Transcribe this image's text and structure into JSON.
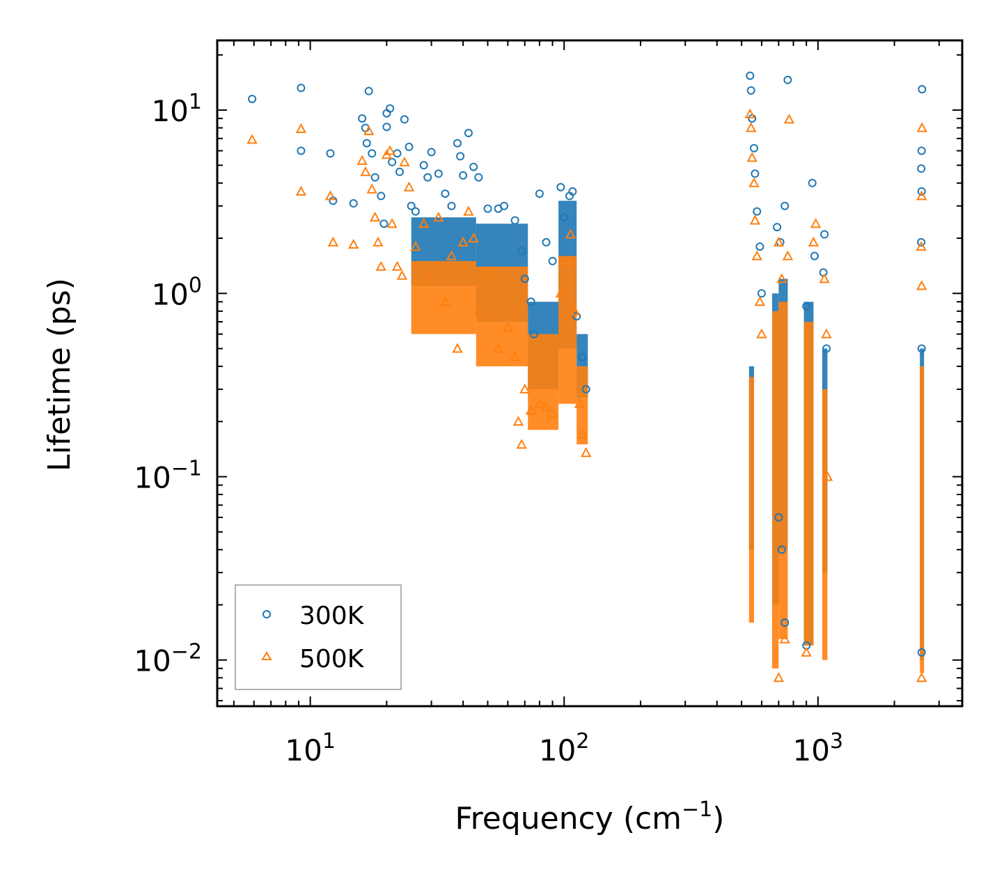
{
  "chart_data": {
    "type": "scatter",
    "xscale": "log",
    "yscale": "log",
    "xlabel": "Frequency (cm",
    "xlabel_sup": "−1",
    "xlabel_suffix": ")",
    "ylabel": "Lifetime (ps)",
    "xlim": [
      4.3,
      3700
    ],
    "ylim": [
      0.0056,
      24
    ],
    "x_ticks": [
      {
        "value": 10,
        "base": "10",
        "exp": "1"
      },
      {
        "value": 100,
        "base": "10",
        "exp": "2"
      },
      {
        "value": 1000,
        "base": "10",
        "exp": "3"
      }
    ],
    "y_ticks": [
      {
        "value": 0.01,
        "base": "10",
        "exp": "−2"
      },
      {
        "value": 0.1,
        "base": "10",
        "exp": "−1"
      },
      {
        "value": 1,
        "base": "10",
        "exp": "0"
      },
      {
        "value": 10,
        "base": "10",
        "exp": "1"
      }
    ],
    "legend": {
      "position": "lower-left"
    },
    "series": [
      {
        "name": "300K",
        "color": "#1f77b4",
        "marker": "circle",
        "points": [
          [
            5.9,
            11.5
          ],
          [
            9.2,
            13.2
          ],
          [
            9.2,
            6.0
          ],
          [
            12.0,
            5.8
          ],
          [
            12.3,
            3.2
          ],
          [
            14.8,
            3.1
          ],
          [
            16.0,
            9.0
          ],
          [
            16.5,
            8.0
          ],
          [
            16.7,
            6.6
          ],
          [
            17.0,
            12.7
          ],
          [
            17.5,
            5.8
          ],
          [
            18.0,
            4.3
          ],
          [
            19.0,
            3.4
          ],
          [
            19.5,
            2.4
          ],
          [
            20.0,
            9.6
          ],
          [
            20.0,
            8.1
          ],
          [
            20.6,
            10.2
          ],
          [
            21.0,
            5.2
          ],
          [
            22.0,
            5.8
          ],
          [
            22.5,
            4.6
          ],
          [
            23.5,
            8.9
          ],
          [
            24.5,
            6.3
          ],
          [
            25.0,
            3.0
          ],
          [
            26.0,
            2.8
          ],
          [
            28.0,
            5.0
          ],
          [
            29.0,
            4.3
          ],
          [
            30.0,
            5.9
          ],
          [
            32.0,
            4.5
          ],
          [
            34.0,
            3.5
          ],
          [
            36.0,
            3.0
          ],
          [
            38.0,
            6.6
          ],
          [
            39.0,
            5.6
          ],
          [
            40.0,
            4.4
          ],
          [
            42.0,
            7.5
          ],
          [
            44.0,
            4.9
          ],
          [
            46.0,
            4.3
          ],
          [
            50.0,
            2.9
          ],
          [
            55.0,
            2.9
          ],
          [
            58.0,
            3.0
          ],
          [
            64.0,
            2.5
          ],
          [
            68.0,
            1.7
          ],
          [
            70.0,
            1.2
          ],
          [
            74.0,
            0.9
          ],
          [
            76.0,
            0.6
          ],
          [
            80.0,
            3.5
          ],
          [
            85.0,
            1.9
          ],
          [
            90.0,
            1.5
          ],
          [
            97.0,
            3.8
          ],
          [
            100.0,
            2.6
          ],
          [
            105.0,
            3.4
          ],
          [
            108.0,
            3.6
          ],
          [
            112.0,
            0.75
          ],
          [
            118.0,
            0.45
          ],
          [
            122.0,
            0.3
          ],
          [
            540.0,
            15.4
          ],
          [
            545.0,
            12.8
          ],
          [
            550.0,
            9.0
          ],
          [
            560.0,
            6.2
          ],
          [
            565.0,
            4.5
          ],
          [
            575.0,
            2.8
          ],
          [
            590.0,
            1.8
          ],
          [
            600.0,
            1.0
          ],
          [
            690.0,
            2.3
          ],
          [
            710.0,
            1.9
          ],
          [
            740.0,
            3.0
          ],
          [
            760.0,
            14.6
          ],
          [
            700.0,
            0.06
          ],
          [
            720.0,
            0.04
          ],
          [
            740.0,
            0.016
          ],
          [
            900.0,
            0.012
          ],
          [
            900.0,
            0.85
          ],
          [
            950.0,
            4.0
          ],
          [
            970.0,
            1.6
          ],
          [
            1050.0,
            1.3
          ],
          [
            1060.0,
            2.1
          ],
          [
            1080.0,
            0.5
          ],
          [
            2570.0,
            13.0
          ],
          [
            2560.0,
            6.0
          ],
          [
            2550.0,
            4.8
          ],
          [
            2560.0,
            3.6
          ],
          [
            2550.0,
            1.9
          ],
          [
            2560.0,
            0.5
          ],
          [
            2560.0,
            0.011
          ]
        ]
      },
      {
        "name": "500K",
        "color": "#ff7f0e",
        "marker": "triangle",
        "points": [
          [
            5.9,
            6.9
          ],
          [
            9.2,
            7.9
          ],
          [
            9.2,
            3.6
          ],
          [
            12.0,
            3.4
          ],
          [
            12.3,
            1.9
          ],
          [
            14.8,
            1.85
          ],
          [
            16.0,
            5.3
          ],
          [
            16.5,
            4.6
          ],
          [
            17.0,
            7.7
          ],
          [
            17.5,
            3.7
          ],
          [
            18.0,
            2.6
          ],
          [
            18.5,
            1.9
          ],
          [
            19.0,
            1.4
          ],
          [
            20.0,
            5.7
          ],
          [
            20.6,
            6.0
          ],
          [
            21.0,
            2.4
          ],
          [
            22.0,
            1.4
          ],
          [
            23.0,
            1.25
          ],
          [
            23.5,
            5.2
          ],
          [
            24.5,
            3.8
          ],
          [
            26.0,
            1.8
          ],
          [
            28.0,
            2.4
          ],
          [
            30.0,
            1.2
          ],
          [
            32.0,
            2.6
          ],
          [
            34.0,
            0.9
          ],
          [
            36.0,
            1.6
          ],
          [
            38.0,
            0.5
          ],
          [
            40.0,
            1.9
          ],
          [
            42.0,
            2.8
          ],
          [
            44.0,
            2.0
          ],
          [
            46.0,
            0.8
          ],
          [
            50.0,
            1.3
          ],
          [
            55.0,
            0.5
          ],
          [
            60.0,
            0.65
          ],
          [
            64.0,
            0.45
          ],
          [
            66.0,
            0.2
          ],
          [
            68.0,
            0.15
          ],
          [
            70.0,
            0.3
          ],
          [
            74.0,
            0.23
          ],
          [
            80.0,
            0.25
          ],
          [
            85.0,
            0.24
          ],
          [
            90.0,
            0.22
          ],
          [
            97.0,
            1.0
          ],
          [
            102.0,
            1.5
          ],
          [
            106.0,
            2.1
          ],
          [
            110.0,
            0.8
          ],
          [
            115.0,
            0.25
          ],
          [
            118.0,
            0.17
          ],
          [
            122.0,
            0.135
          ],
          [
            540.0,
            9.5
          ],
          [
            545.0,
            8.0
          ],
          [
            550.0,
            5.5
          ],
          [
            560.0,
            4.0
          ],
          [
            565.0,
            2.5
          ],
          [
            575.0,
            1.6
          ],
          [
            590.0,
            0.9
          ],
          [
            600.0,
            0.6
          ],
          [
            700.0,
            1.9
          ],
          [
            720.0,
            1.2
          ],
          [
            770.0,
            8.9
          ],
          [
            760.0,
            1.6
          ],
          [
            700.0,
            0.008
          ],
          [
            740.0,
            0.013
          ],
          [
            900.0,
            0.011
          ],
          [
            980.0,
            2.4
          ],
          [
            960.0,
            1.9
          ],
          [
            1060.0,
            1.2
          ],
          [
            1080.0,
            0.6
          ],
          [
            1090.0,
            0.1
          ],
          [
            2570.0,
            8.0
          ],
          [
            2560.0,
            3.4
          ],
          [
            2550.0,
            1.8
          ],
          [
            2560.0,
            1.1
          ],
          [
            2560.0,
            0.008
          ]
        ]
      }
    ]
  }
}
